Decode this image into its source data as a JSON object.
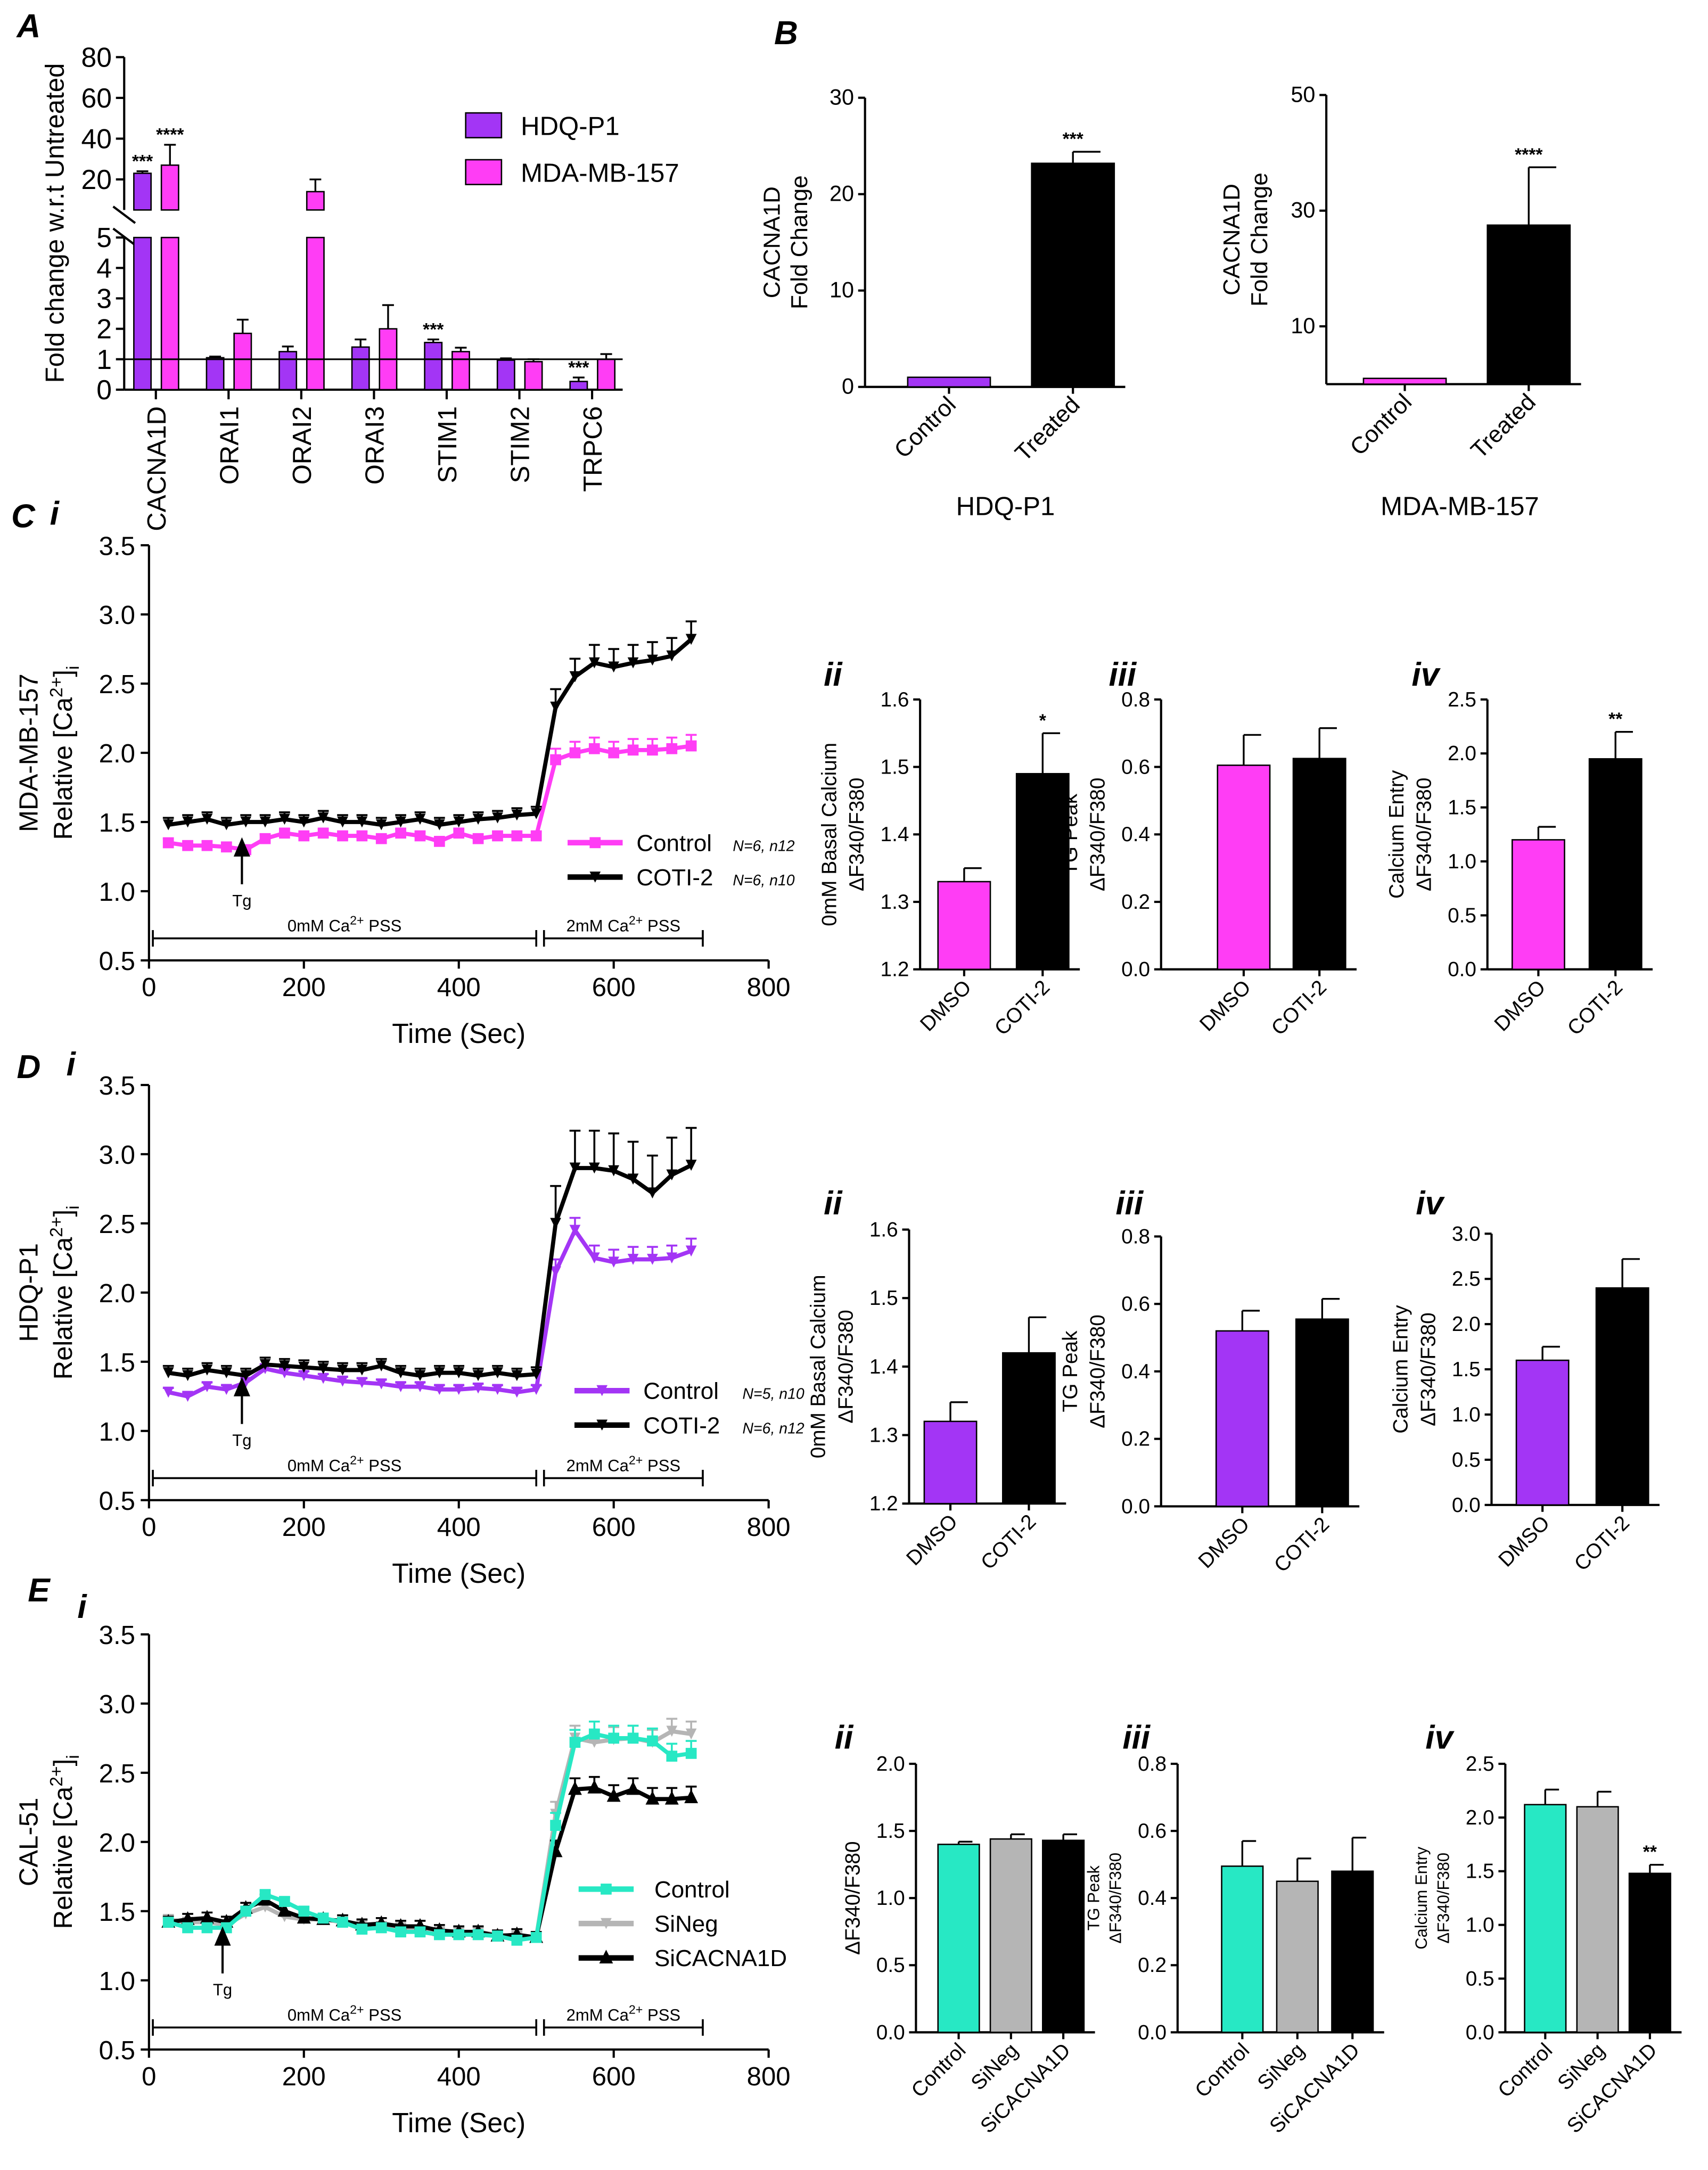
{
  "panel_labels": {
    "A": "A",
    "B": "B",
    "C": "C",
    "D": "D",
    "E": "E",
    "i": "i",
    "ii": "ii",
    "iii": "iii",
    "iv": "iv"
  },
  "colors": {
    "purple": "#A335F5",
    "pink": "#FF3DF5",
    "teal": "#27E8C4",
    "grey": "#B5B5B5",
    "black": "#000000"
  },
  "chart_data": [
    {
      "id": "A",
      "type": "bar",
      "title": "",
      "ylabel": "Fold change w.r.t Untreated",
      "ylim": [
        0,
        80
      ],
      "axis_break": [
        5,
        5
      ],
      "yticks_lower": [
        0,
        1,
        2,
        3,
        4,
        5
      ],
      "yticks_upper": [
        20,
        40,
        60,
        80
      ],
      "reference_line": 1,
      "categories": [
        "CACNA1D",
        "ORAI1",
        "ORAI2",
        "ORAI3",
        "STIM1",
        "STIM2",
        "TRPC6"
      ],
      "legend": "top-right",
      "series": [
        {
          "name": "HDQ-P1",
          "color": "#A335F5",
          "values": [
            23,
            1.05,
            1.25,
            1.4,
            1.55,
            0.97,
            0.27
          ],
          "errors": [
            1,
            0.04,
            0.17,
            0.25,
            0.1,
            0.06,
            0.13
          ],
          "sig": [
            "***",
            "",
            "",
            "",
            "***",
            "",
            "***"
          ]
        },
        {
          "name": "MDA-MB-157",
          "color": "#FF3DF5",
          "values": [
            27,
            1.85,
            14,
            2.0,
            1.25,
            0.92,
            1.0
          ],
          "errors": [
            10,
            0.45,
            6,
            0.78,
            0.13,
            0.08,
            0.17
          ],
          "sig": [
            "****",
            "",
            "",
            "",
            "",
            "",
            ""
          ]
        }
      ]
    },
    {
      "id": "B1",
      "type": "bar",
      "title": "HDQ-P1",
      "ylabel": [
        "CACNA1D",
        "Fold Change"
      ],
      "ylim": [
        0,
        30
      ],
      "yticks": [
        0,
        10,
        20,
        30
      ],
      "categories": [
        "Control",
        "Treated"
      ],
      "values": [
        1,
        23.2
      ],
      "errors": [
        0,
        1.2
      ],
      "colors": [
        "#A335F5",
        "#000000"
      ],
      "sig": [
        "",
        "***"
      ]
    },
    {
      "id": "B2",
      "type": "bar",
      "title": "MDA-MB-157",
      "ylabel": [
        "CACNA1D",
        "Fold Change"
      ],
      "ylim": [
        0,
        50
      ],
      "yticks": [
        10,
        30,
        50
      ],
      "categories": [
        "Control",
        "Treated"
      ],
      "values": [
        1,
        27.5
      ],
      "errors": [
        0,
        10
      ],
      "colors": [
        "#FF3DF5",
        "#000000"
      ],
      "sig": [
        "",
        "****"
      ]
    },
    {
      "id": "Ci",
      "type": "line",
      "xlabel": "Time (Sec)",
      "cell_line": "MDA-MB-157",
      "ylabel": {
        "pre": "Relative [Ca",
        "sup": "2+",
        "mid": "]",
        "sub": "i"
      },
      "xlim": [
        0,
        800
      ],
      "ylim": [
        0.5,
        3.5
      ],
      "xticks": [
        0,
        200,
        400,
        600,
        800
      ],
      "yticks": [
        0.5,
        1.0,
        1.5,
        2.0,
        2.5,
        3.0,
        3.5
      ],
      "x": [
        25,
        50,
        75,
        100,
        125,
        150,
        175,
        200,
        225,
        250,
        275,
        300,
        325,
        350,
        375,
        400,
        425,
        450,
        475,
        500,
        525,
        550,
        575,
        600,
        625,
        650,
        675,
        700
      ],
      "series": [
        {
          "name": "Control",
          "note": "N=6, n12",
          "color": "#FF3DF5",
          "marker": "square",
          "err_pre": 0.03,
          "err_post": 0.08,
          "values": [
            1.35,
            1.33,
            1.33,
            1.32,
            1.3,
            1.38,
            1.42,
            1.4,
            1.42,
            1.4,
            1.4,
            1.38,
            1.42,
            1.4,
            1.36,
            1.42,
            1.38,
            1.4,
            1.4,
            1.4,
            1.95,
            2.0,
            2.03,
            2.0,
            2.02,
            2.02,
            2.03,
            2.05
          ]
        },
        {
          "name": "COTI-2",
          "note": "N=6, n10",
          "color": "#000000",
          "marker": "tri-down",
          "err_pre": 0.05,
          "err_post": 0.13,
          "values": [
            1.48,
            1.5,
            1.52,
            1.48,
            1.5,
            1.5,
            1.52,
            1.5,
            1.53,
            1.5,
            1.5,
            1.48,
            1.5,
            1.52,
            1.48,
            1.5,
            1.52,
            1.53,
            1.55,
            1.56,
            2.33,
            2.55,
            2.65,
            2.62,
            2.65,
            2.67,
            2.7,
            2.82
          ]
        }
      ],
      "tg": {
        "label": "Tg",
        "time": 120
      },
      "phases": [
        {
          "pre": "0mM Ca",
          "sup": "2+",
          "post": " PSS",
          "range": [
            5,
            500
          ]
        },
        {
          "pre": "2mM Ca",
          "sup": "2+",
          "post": " PSS",
          "range": [
            510,
            715
          ]
        }
      ]
    },
    {
      "id": "Cii",
      "type": "bar",
      "ylabel": [
        "0mM Basal Calcium",
        "ΔF340/F380"
      ],
      "ylim": [
        1.2,
        1.6
      ],
      "yticks": [
        1.2,
        1.3,
        1.4,
        1.5,
        1.6
      ],
      "categories": [
        "DMSO",
        "COTI-2"
      ],
      "values": [
        1.33,
        1.49
      ],
      "errors": [
        0.02,
        0.06
      ],
      "colors": [
        "#FF3DF5",
        "#000000"
      ],
      "sig": [
        "",
        "*"
      ]
    },
    {
      "id": "Ciii",
      "type": "bar",
      "ylabel": [
        "TG Peak",
        "ΔF340/F380"
      ],
      "ylim": [
        0,
        0.8
      ],
      "yticks": [
        0.0,
        0.2,
        0.4,
        0.6,
        0.8
      ],
      "categories": [
        "DMSO",
        "COTI-2"
      ],
      "values": [
        0.605,
        0.625
      ],
      "errors": [
        0.09,
        0.09
      ],
      "colors": [
        "#FF3DF5",
        "#000000"
      ],
      "sig": [
        "",
        ""
      ]
    },
    {
      "id": "Civ",
      "type": "bar",
      "ylabel": [
        "Calcium Entry",
        "ΔF340/F380"
      ],
      "ylim": [
        0,
        2.5
      ],
      "yticks": [
        0.0,
        0.5,
        1.0,
        1.5,
        2.0,
        2.5
      ],
      "categories": [
        "DMSO",
        "COTI-2"
      ],
      "values": [
        1.2,
        1.95
      ],
      "errors": [
        0.12,
        0.25
      ],
      "colors": [
        "#FF3DF5",
        "#000000"
      ],
      "sig": [
        "",
        "**"
      ]
    },
    {
      "id": "Di",
      "type": "line",
      "xlabel": "Time (Sec)",
      "cell_line": "HDQ-P1",
      "ylabel": {
        "pre": "Relative [Ca",
        "sup": "2+",
        "mid": "]",
        "sub": "i"
      },
      "xlim": [
        0,
        800
      ],
      "ylim": [
        0.5,
        3.5
      ],
      "xticks": [
        0,
        200,
        400,
        600,
        800
      ],
      "yticks": [
        0.5,
        1.0,
        1.5,
        2.0,
        2.5,
        3.0,
        3.5
      ],
      "x": [
        25,
        50,
        75,
        100,
        125,
        150,
        175,
        200,
        225,
        250,
        275,
        300,
        325,
        350,
        375,
        400,
        425,
        450,
        475,
        500,
        525,
        550,
        575,
        600,
        625,
        650,
        675,
        700
      ],
      "series": [
        {
          "name": "Control",
          "note": "N=5, n10",
          "color": "#A335F5",
          "marker": "tri-down",
          "err_pre": 0.03,
          "err_post": 0.09,
          "values": [
            1.28,
            1.25,
            1.32,
            1.3,
            1.35,
            1.45,
            1.42,
            1.4,
            1.38,
            1.36,
            1.35,
            1.34,
            1.32,
            1.32,
            1.3,
            1.3,
            1.31,
            1.3,
            1.28,
            1.3,
            2.15,
            2.45,
            2.25,
            2.22,
            2.24,
            2.24,
            2.25,
            2.3
          ]
        },
        {
          "name": "COTI-2",
          "note": "N=6, n12",
          "color": "#000000",
          "marker": "tri-down",
          "err_pre": 0.05,
          "err_post": 0.27,
          "values": [
            1.42,
            1.4,
            1.44,
            1.42,
            1.4,
            1.48,
            1.47,
            1.46,
            1.45,
            1.44,
            1.44,
            1.47,
            1.42,
            1.4,
            1.42,
            1.42,
            1.4,
            1.42,
            1.4,
            1.41,
            2.5,
            2.9,
            2.9,
            2.88,
            2.82,
            2.72,
            2.85,
            2.92
          ]
        }
      ],
      "tg": {
        "label": "Tg",
        "time": 120
      },
      "phases": [
        {
          "pre": "0mM Ca",
          "sup": "2+",
          "post": " PSS",
          "range": [
            5,
            500
          ]
        },
        {
          "pre": "2mM Ca",
          "sup": "2+",
          "post": " PSS",
          "range": [
            510,
            715
          ]
        }
      ]
    },
    {
      "id": "Dii",
      "type": "bar",
      "ylabel": [
        "0mM Basal Calcium",
        "ΔF340/F380"
      ],
      "ylim": [
        1.2,
        1.6
      ],
      "yticks": [
        1.2,
        1.3,
        1.4,
        1.5,
        1.6
      ],
      "categories": [
        "DMSO",
        "COTI-2"
      ],
      "values": [
        1.32,
        1.42
      ],
      "errors": [
        0.028,
        0.052
      ],
      "colors": [
        "#A335F5",
        "#000000"
      ],
      "sig": [
        "",
        ""
      ]
    },
    {
      "id": "Diii",
      "type": "bar",
      "ylabel": [
        "TG Peak",
        "ΔF340/F380"
      ],
      "ylim": [
        0,
        0.8
      ],
      "yticks": [
        0.0,
        0.2,
        0.4,
        0.6,
        0.8
      ],
      "categories": [
        "DMSO",
        "COTI-2"
      ],
      "values": [
        0.52,
        0.555
      ],
      "errors": [
        0.06,
        0.06
      ],
      "colors": [
        "#A335F5",
        "#000000"
      ],
      "sig": [
        "",
        ""
      ]
    },
    {
      "id": "Div",
      "type": "bar",
      "ylabel": [
        "Calcium Entry",
        "ΔF340/F380"
      ],
      "ylim": [
        0,
        3.0
      ],
      "yticks": [
        0.0,
        0.5,
        1.0,
        1.5,
        2.0,
        2.5,
        3.0
      ],
      "categories": [
        "DMSO",
        "COTI-2"
      ],
      "values": [
        1.6,
        2.4
      ],
      "errors": [
        0.15,
        0.32
      ],
      "colors": [
        "#A335F5",
        "#000000"
      ],
      "sig": [
        "",
        ""
      ]
    },
    {
      "id": "Ei",
      "type": "line",
      "xlabel": "Time (Sec)",
      "cell_line": "CAL-51",
      "ylabel": {
        "pre": "Relative [Ca",
        "sup": "2+",
        "mid": "]",
        "sub": "i"
      },
      "xlim": [
        0,
        800
      ],
      "ylim": [
        0.5,
        3.5
      ],
      "xticks": [
        0,
        200,
        400,
        600,
        800
      ],
      "yticks": [
        0.5,
        1.0,
        1.5,
        2.0,
        2.5,
        3.0,
        3.5
      ],
      "x": [
        25,
        50,
        75,
        100,
        125,
        150,
        175,
        200,
        225,
        250,
        275,
        300,
        325,
        350,
        375,
        400,
        425,
        450,
        475,
        500,
        525,
        550,
        575,
        600,
        625,
        650,
        675,
        700
      ],
      "series": [
        {
          "name": "SiNeg",
          "note": "",
          "color": "#B5B5B5",
          "marker": "tri-down",
          "err_pre": 0.03,
          "err_post": 0.09,
          "values": [
            1.44,
            1.42,
            1.42,
            1.4,
            1.48,
            1.53,
            1.46,
            1.44,
            1.44,
            1.42,
            1.4,
            1.39,
            1.38,
            1.36,
            1.35,
            1.35,
            1.35,
            1.33,
            1.32,
            1.31,
            2.2,
            2.75,
            2.72,
            2.74,
            2.75,
            2.72,
            2.8,
            2.78
          ]
        },
        {
          "name": "SiCACNA1D",
          "note": "",
          "color": "#000000",
          "marker": "tri-up",
          "err_pre": 0.04,
          "err_post": 0.08,
          "values": [
            1.42,
            1.44,
            1.45,
            1.42,
            1.52,
            1.58,
            1.5,
            1.45,
            1.44,
            1.43,
            1.4,
            1.41,
            1.39,
            1.39,
            1.36,
            1.35,
            1.35,
            1.32,
            1.33,
            1.31,
            1.93,
            2.38,
            2.39,
            2.33,
            2.38,
            2.31,
            2.31,
            2.32
          ]
        },
        {
          "name": "Control",
          "note": "",
          "color": "#27E8C4",
          "marker": "square",
          "err_pre": 0.03,
          "err_post": 0.09,
          "values": [
            1.42,
            1.38,
            1.38,
            1.38,
            1.5,
            1.62,
            1.57,
            1.5,
            1.45,
            1.42,
            1.37,
            1.38,
            1.35,
            1.35,
            1.33,
            1.33,
            1.33,
            1.32,
            1.29,
            1.31,
            2.12,
            2.72,
            2.78,
            2.75,
            2.75,
            2.73,
            2.62,
            2.64
          ]
        }
      ],
      "legend_order": [
        "Control",
        "SiNeg",
        "SiCACNA1D"
      ],
      "tg": {
        "label": "Tg",
        "time": 95
      },
      "phases": [
        {
          "pre": "0mM Ca",
          "sup": "2+",
          "post": " PSS",
          "range": [
            5,
            500
          ]
        },
        {
          "pre": "2mM Ca",
          "sup": "2+",
          "post": " PSS",
          "range": [
            510,
            715
          ]
        }
      ]
    },
    {
      "id": "Eii",
      "type": "bar",
      "ylabel": [
        "",
        "ΔF340/F380"
      ],
      "ylim": [
        0,
        2.0
      ],
      "yticks": [
        0.0,
        0.5,
        1.0,
        1.5,
        2.0
      ],
      "categories": [
        "Control",
        "SiNeg",
        "SiCACNA1D"
      ],
      "values": [
        1.4,
        1.44,
        1.43
      ],
      "errors": [
        0.02,
        0.035,
        0.045
      ],
      "colors": [
        "#27E8C4",
        "#B5B5B5",
        "#000000"
      ],
      "sig": [
        "",
        "",
        ""
      ]
    },
    {
      "id": "Eiii",
      "type": "bar",
      "ylabel": [
        "TG Peak",
        "ΔF340/F380"
      ],
      "ylim": [
        0,
        0.8
      ],
      "yticks": [
        0.0,
        0.2,
        0.4,
        0.6,
        0.8
      ],
      "categories": [
        "Control",
        "SiNeg",
        "SiCACNA1D"
      ],
      "values": [
        0.495,
        0.45,
        0.48
      ],
      "errors": [
        0.075,
        0.068,
        0.1
      ],
      "colors": [
        "#27E8C4",
        "#B5B5B5",
        "#000000"
      ],
      "sig": [
        "",
        "",
        ""
      ]
    },
    {
      "id": "Eiv",
      "type": "bar",
      "ylabel": [
        "Calcium Entry",
        "ΔF340/F380"
      ],
      "ylim": [
        0,
        2.5
      ],
      "yticks": [
        0.0,
        0.5,
        1.0,
        1.5,
        2.0,
        2.5
      ],
      "categories": [
        "Control",
        "SiNeg",
        "SiCACNA1D"
      ],
      "values": [
        2.12,
        2.1,
        1.48
      ],
      "errors": [
        0.14,
        0.14,
        0.08
      ],
      "colors": [
        "#27E8C4",
        "#B5B5B5",
        "#000000"
      ],
      "sig": [
        "",
        "",
        "**"
      ]
    }
  ]
}
